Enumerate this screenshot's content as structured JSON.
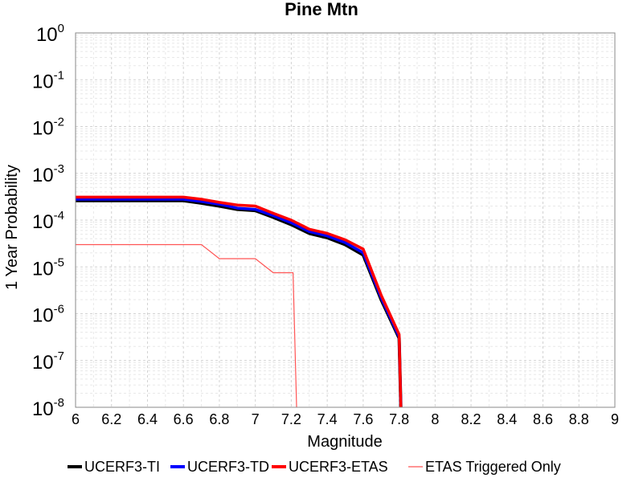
{
  "chart_data": {
    "type": "line",
    "title": "Pine Mtn",
    "xlabel": "Magnitude",
    "ylabel": "1 Year Probability",
    "xlim": [
      6,
      9
    ],
    "ylim": [
      1e-08,
      1
    ],
    "yscale": "log",
    "grid": true,
    "legend_position": "bottom",
    "x_ticks": [
      "6",
      "6.2",
      "6.4",
      "6.6",
      "6.8",
      "7",
      "7.2",
      "7.4",
      "7.6",
      "7.8",
      "8",
      "8.2",
      "8.4",
      "8.6",
      "8.8",
      "9"
    ],
    "y_ticks": [
      {
        "base": "10",
        "exp": "0"
      },
      {
        "base": "10",
        "exp": "-1"
      },
      {
        "base": "10",
        "exp": "-2"
      },
      {
        "base": "10",
        "exp": "-3"
      },
      {
        "base": "10",
        "exp": "-4"
      },
      {
        "base": "10",
        "exp": "-5"
      },
      {
        "base": "10",
        "exp": "-6"
      },
      {
        "base": "10",
        "exp": "-7"
      },
      {
        "base": "10",
        "exp": "-8"
      }
    ],
    "series": [
      {
        "name": "UCERF3-TI",
        "color": "#000000",
        "x": [
          6.0,
          6.1,
          6.2,
          6.3,
          6.4,
          6.5,
          6.6,
          6.7,
          6.8,
          6.9,
          7.0,
          7.1,
          7.2,
          7.3,
          7.4,
          7.5,
          7.6,
          7.7,
          7.8,
          7.81
        ],
        "y": [
          0.00026,
          0.00026,
          0.00026,
          0.00026,
          0.00026,
          0.00026,
          0.00026,
          0.00023,
          0.0002,
          0.00017,
          0.00016,
          0.000115,
          8e-05,
          5.2e-05,
          4.2e-05,
          3e-05,
          1.8e-05,
          2e-06,
          3e-07,
          5e-09
        ]
      },
      {
        "name": "UCERF3-TD",
        "color": "#0000ff",
        "x": [
          6.0,
          6.1,
          6.2,
          6.3,
          6.4,
          6.5,
          6.6,
          6.7,
          6.8,
          6.9,
          7.0,
          7.1,
          7.2,
          7.3,
          7.4,
          7.5,
          7.6,
          7.7,
          7.8,
          7.81
        ],
        "y": [
          0.00028,
          0.00028,
          0.00028,
          0.00028,
          0.00028,
          0.00028,
          0.00028,
          0.00025,
          0.00022,
          0.00018,
          0.00017,
          0.000125,
          8.8e-05,
          5.7e-05,
          4.6e-05,
          3.3e-05,
          2e-05,
          2.2e-06,
          3.2e-07,
          5e-09
        ]
      },
      {
        "name": "UCERF3-ETAS",
        "color": "#ff0000",
        "x": [
          6.0,
          6.1,
          6.2,
          6.3,
          6.4,
          6.5,
          6.6,
          6.7,
          6.8,
          6.9,
          7.0,
          7.1,
          7.2,
          7.3,
          7.4,
          7.5,
          7.6,
          7.7,
          7.8,
          7.81
        ],
        "y": [
          0.00031,
          0.00031,
          0.00031,
          0.00031,
          0.00031,
          0.00031,
          0.00031,
          0.00028,
          0.00024,
          0.00021,
          0.0002,
          0.00014,
          0.0001,
          6.4e-05,
          5.2e-05,
          3.8e-05,
          2.4e-05,
          2.5e-06,
          3.6e-07,
          5e-09
        ]
      },
      {
        "name": "ETAS Triggered Only",
        "color": "#ff5555",
        "x": [
          6.0,
          6.1,
          6.2,
          6.3,
          6.4,
          6.5,
          6.6,
          6.7,
          6.8,
          6.9,
          7.0,
          7.1,
          7.2,
          7.21,
          7.23
        ],
        "y": [
          3e-05,
          3e-05,
          3e-05,
          3e-05,
          3e-05,
          3e-05,
          3e-05,
          3e-05,
          1.5e-05,
          1.5e-05,
          1.5e-05,
          7.5e-06,
          7.5e-06,
          7.5e-06,
          5e-09
        ]
      }
    ]
  }
}
